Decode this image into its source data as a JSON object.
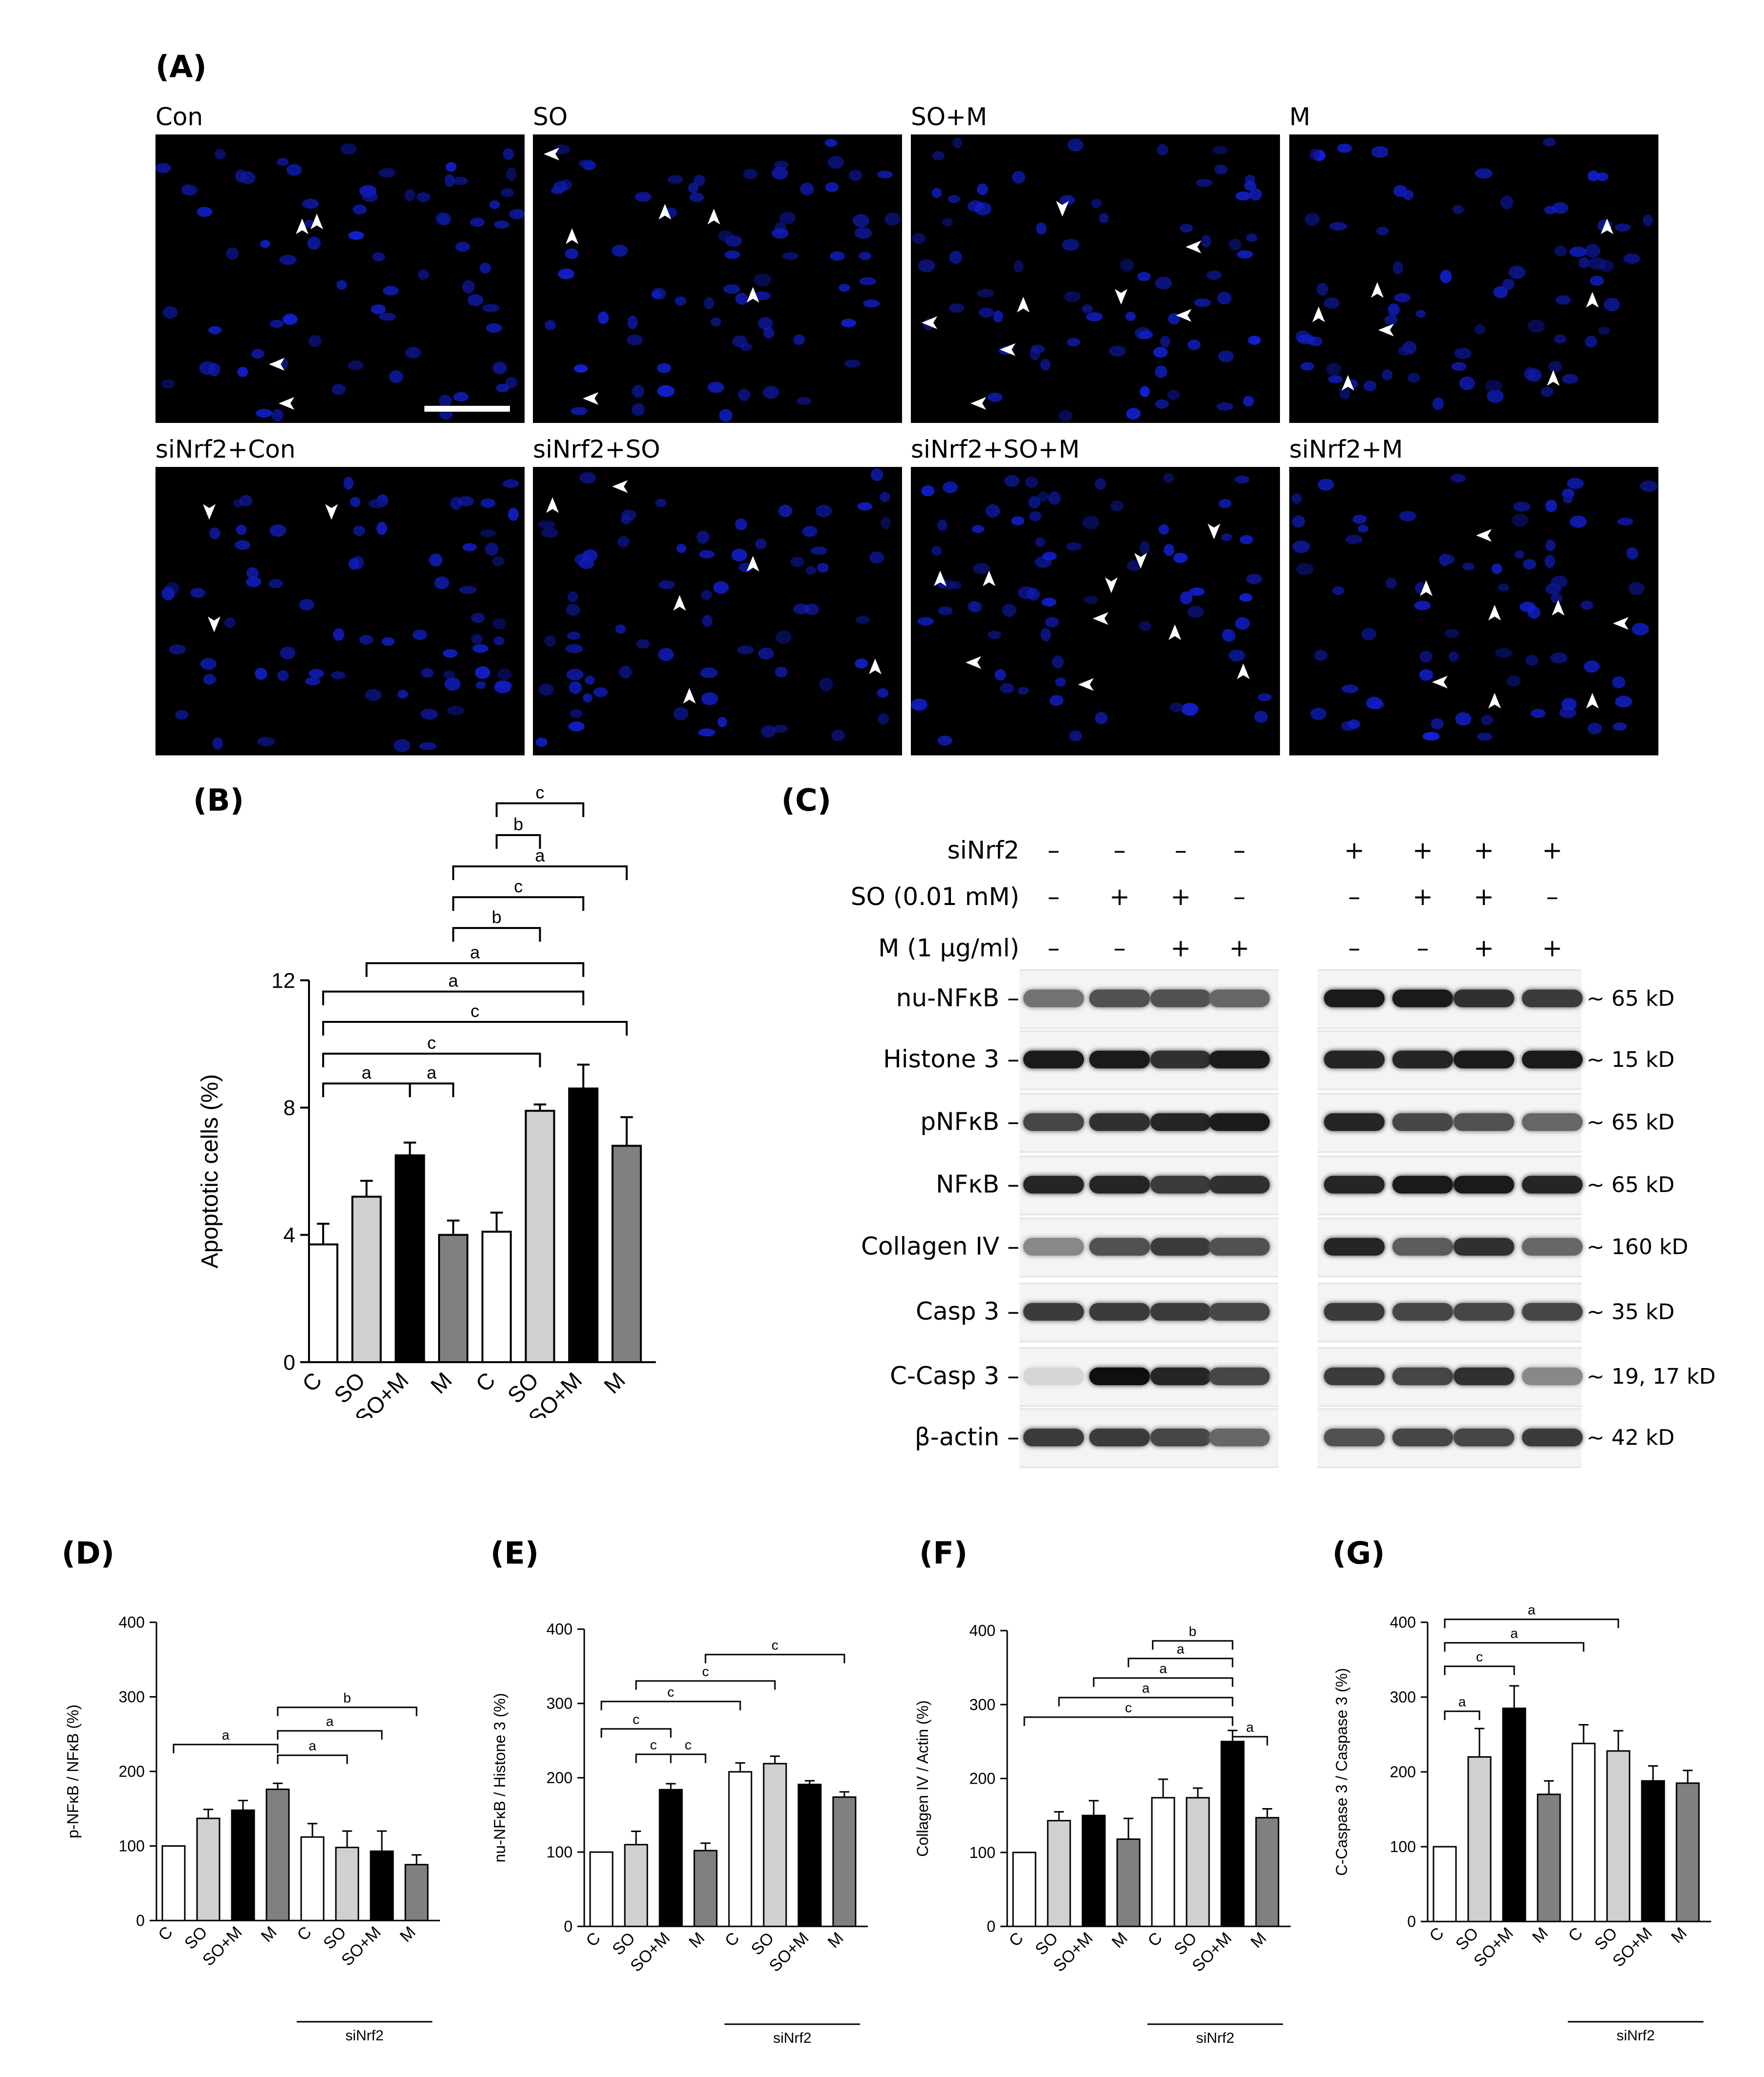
{
  "panelA": {
    "label": "(A)",
    "images": [
      {
        "label": "Con",
        "seed": 1,
        "arrows": [
          [
            300,
            190,
            "up"
          ],
          [
            330,
            180,
            "up"
          ],
          [
            250,
            470,
            "left"
          ],
          [
            270,
            550,
            "left"
          ]
        ]
      },
      {
        "label": "SO",
        "seed": 2,
        "arrows": [
          [
            40,
            40,
            "left"
          ],
          [
            80,
            210,
            "up"
          ],
          [
            270,
            160,
            "up"
          ],
          [
            370,
            170,
            "up"
          ],
          [
            450,
            330,
            "up"
          ],
          [
            120,
            540,
            "left"
          ]
        ]
      },
      {
        "label": "SO+M",
        "seed": 3,
        "arrows": [
          [
            310,
            150,
            "down"
          ],
          [
            580,
            230,
            "left"
          ],
          [
            230,
            350,
            "up"
          ],
          [
            430,
            330,
            "down"
          ],
          [
            560,
            370,
            "left"
          ],
          [
            40,
            385,
            "left"
          ],
          [
            200,
            440,
            "left"
          ],
          [
            140,
            550,
            "left"
          ]
        ]
      },
      {
        "label": "M",
        "seed": 4,
        "arrows": [
          [
            650,
            190,
            "up"
          ],
          [
            60,
            370,
            "up"
          ],
          [
            180,
            320,
            "up"
          ],
          [
            200,
            400,
            "left"
          ],
          [
            620,
            340,
            "up"
          ],
          [
            540,
            500,
            "up"
          ],
          [
            120,
            510,
            "up"
          ]
        ]
      },
      {
        "label": "siNrf2+Con",
        "seed": 5,
        "arrows": [
          [
            110,
            90,
            "down"
          ],
          [
            360,
            90,
            "down"
          ],
          [
            120,
            320,
            "down"
          ]
        ]
      },
      {
        "label": "siNrf2+SO",
        "seed": 6,
        "arrows": [
          [
            40,
            80,
            "up"
          ],
          [
            180,
            40,
            "left"
          ],
          [
            450,
            200,
            "up"
          ],
          [
            300,
            280,
            "up"
          ],
          [
            700,
            410,
            "up"
          ],
          [
            320,
            470,
            "up"
          ]
        ]
      },
      {
        "label": "siNrf2+SO+M",
        "seed": 7,
        "arrows": [
          [
            470,
            190,
            "down"
          ],
          [
            620,
            130,
            "down"
          ],
          [
            410,
            240,
            "down"
          ],
          [
            60,
            230,
            "up"
          ],
          [
            160,
            230,
            "up"
          ],
          [
            390,
            310,
            "left"
          ],
          [
            540,
            340,
            "up"
          ],
          [
            680,
            420,
            "up"
          ],
          [
            130,
            400,
            "left"
          ],
          [
            360,
            445,
            "left"
          ]
        ]
      },
      {
        "label": "siNrf2+M",
        "seed": 8,
        "arrows": [
          [
            400,
            140,
            "left"
          ],
          [
            280,
            250,
            "up"
          ],
          [
            420,
            300,
            "up"
          ],
          [
            550,
            290,
            "up"
          ],
          [
            680,
            320,
            "left"
          ],
          [
            310,
            440,
            "left"
          ],
          [
            420,
            480,
            "up"
          ],
          [
            620,
            480,
            "up"
          ]
        ]
      }
    ]
  },
  "panelB": {
    "label": "(B)",
    "chart_data": {
      "type": "bar",
      "ylabel": "Apoptotic cells (%)",
      "ylim": [
        0,
        12
      ],
      "yticks": [
        "0",
        "4",
        "8",
        "12"
      ],
      "categories": [
        "C",
        "SO",
        "SO+M",
        "M",
        "C",
        "SO",
        "SO+M",
        "M"
      ],
      "values": [
        3.7,
        5.2,
        6.5,
        4.0,
        4.1,
        7.9,
        8.6,
        6.8
      ],
      "errors": [
        0.65,
        0.5,
        0.4,
        0.45,
        0.6,
        0.2,
        0.75,
        0.9
      ],
      "fills": [
        "#ffffff",
        "#d0d0d0",
        "#000000",
        "#808080",
        "#ffffff",
        "#d0d0d0",
        "#000000",
        "#808080"
      ],
      "group_label": "siNrf2",
      "significance": [
        {
          "from": 0,
          "to": 2,
          "label": "a"
        },
        {
          "from": 2,
          "to": 3,
          "label": "a"
        },
        {
          "from": 0,
          "to": 5,
          "label": "c"
        },
        {
          "from": 0,
          "to": 7,
          "label": "c"
        },
        {
          "from": 0,
          "to": 6,
          "label": "a"
        },
        {
          "from": 1,
          "to": 6,
          "label": "a"
        },
        {
          "from": 3,
          "to": 5,
          "label": "b"
        },
        {
          "from": 3,
          "to": 6,
          "label": "c"
        },
        {
          "from": 3,
          "to": 7,
          "label": "a"
        },
        {
          "from": 4,
          "to": 5,
          "label": "b"
        },
        {
          "from": 4,
          "to": 6,
          "label": "c"
        }
      ]
    }
  },
  "panelC": {
    "label": "(C)",
    "rows": [
      {
        "name": "siNrf2",
        "marks": [
          "–",
          "–",
          "–",
          "–",
          "+",
          "+",
          "+",
          "+"
        ]
      },
      {
        "name": "SO (0.01 mM)",
        "marks": [
          "–",
          "+",
          "+",
          "–",
          "–",
          "+",
          "+",
          "–"
        ]
      },
      {
        "name": "M   (1 μg/ml)",
        "marks": [
          "–",
          "–",
          "+",
          "+",
          "–",
          "–",
          "+",
          "+"
        ]
      }
    ],
    "blots": [
      {
        "name": "nu-NFκB –",
        "size": "~ 65 kD",
        "intensity": [
          0.55,
          0.7,
          0.7,
          0.6,
          0.95,
          0.95,
          0.85,
          0.8
        ]
      },
      {
        "name": "Histone 3 –",
        "size": "~ 15 kD",
        "intensity": [
          0.95,
          0.95,
          0.85,
          0.95,
          0.9,
          0.9,
          0.95,
          0.95
        ]
      },
      {
        "name": "pNFκB –",
        "size": "~ 65 kD",
        "intensity": [
          0.75,
          0.85,
          0.9,
          0.95,
          0.9,
          0.75,
          0.7,
          0.6
        ]
      },
      {
        "name": "NFκB –",
        "size": "~ 65 kD",
        "intensity": [
          0.9,
          0.9,
          0.8,
          0.85,
          0.9,
          0.95,
          0.95,
          0.9
        ]
      },
      {
        "name": "Collagen IV –",
        "size": "~ 160 kD",
        "intensity": [
          0.45,
          0.7,
          0.8,
          0.7,
          0.9,
          0.65,
          0.85,
          0.6
        ]
      },
      {
        "name": "Casp 3 –",
        "size": "~ 35 kD",
        "intensity": [
          0.8,
          0.8,
          0.8,
          0.75,
          0.8,
          0.75,
          0.75,
          0.75
        ]
      },
      {
        "name": "C-Casp 3 –",
        "size": "~ 19, 17 kD",
        "intensity": [
          0.1,
          1.0,
          0.9,
          0.75,
          0.8,
          0.75,
          0.85,
          0.45
        ]
      },
      {
        "name": "β-actin –",
        "size": "~ 42 kD",
        "intensity": [
          0.8,
          0.8,
          0.75,
          0.6,
          0.7,
          0.75,
          0.75,
          0.8
        ]
      }
    ]
  },
  "panelD": {
    "label": "(D)",
    "chart_data": {
      "type": "bar",
      "ylabel": "p-NFκB / NFκB (%)",
      "ylim": [
        0,
        400
      ],
      "yticks": [
        "0",
        "100",
        "200",
        "300",
        "400"
      ],
      "categories": [
        "C",
        "SO",
        "SO+M",
        "M",
        "C",
        "SO",
        "SO+M",
        "M"
      ],
      "values": [
        100,
        137,
        148,
        176,
        112,
        98,
        93,
        75
      ],
      "errors": [
        0,
        12,
        13,
        8,
        18,
        22,
        27,
        13
      ],
      "fills": [
        "#ffffff",
        "#d0d0d0",
        "#000000",
        "#808080",
        "#ffffff",
        "#d0d0d0",
        "#000000",
        "#808080"
      ],
      "group_label": "siNrf2",
      "significance": [
        {
          "from": 0,
          "to": 3,
          "label": "a"
        },
        {
          "from": 3,
          "to": 5,
          "label": "a"
        },
        {
          "from": 3,
          "to": 6,
          "label": "a"
        },
        {
          "from": 3,
          "to": 7,
          "label": "b"
        }
      ]
    }
  },
  "panelE": {
    "label": "(E)",
    "chart_data": {
      "type": "bar",
      "ylabel": "nu-NFκB / Histone 3 (%)",
      "ylim": [
        0,
        400
      ],
      "yticks": [
        "0",
        "100",
        "200",
        "300",
        "400"
      ],
      "categories": [
        "C",
        "SO",
        "SO+M",
        "M",
        "C",
        "SO",
        "SO+M",
        "M"
      ],
      "values": [
        100,
        110,
        184,
        102,
        208,
        219,
        191,
        174
      ],
      "errors": [
        0,
        18,
        8,
        10,
        12,
        10,
        5,
        7
      ],
      "fills": [
        "#ffffff",
        "#d0d0d0",
        "#000000",
        "#808080",
        "#ffffff",
        "#d0d0d0",
        "#000000",
        "#808080"
      ],
      "group_label": "siNrf2",
      "significance": [
        {
          "from": 1,
          "to": 2,
          "label": "c"
        },
        {
          "from": 2,
          "to": 3,
          "label": "c"
        },
        {
          "from": 0,
          "to": 2,
          "label": "c"
        },
        {
          "from": 0,
          "to": 4,
          "label": "c"
        },
        {
          "from": 1,
          "to": 5,
          "label": "c"
        },
        {
          "from": 3,
          "to": 7,
          "label": "c"
        }
      ]
    }
  },
  "panelF": {
    "label": "(F)",
    "chart_data": {
      "type": "bar",
      "ylabel": "Collagen IV / Actin (%)",
      "ylim": [
        0,
        400
      ],
      "yticks": [
        "0",
        "100",
        "200",
        "300",
        "400"
      ],
      "categories": [
        "C",
        "SO",
        "SO+M",
        "M",
        "C",
        "SO",
        "SO+M",
        "M"
      ],
      "values": [
        100,
        143,
        150,
        118,
        174,
        174,
        250,
        147
      ],
      "errors": [
        0,
        12,
        20,
        28,
        25,
        13,
        15,
        12
      ],
      "fills": [
        "#ffffff",
        "#d0d0d0",
        "#000000",
        "#808080",
        "#ffffff",
        "#d0d0d0",
        "#000000",
        "#808080"
      ],
      "group_label": "siNrf2",
      "significance": [
        {
          "from": 6,
          "to": 7,
          "label": "a"
        },
        {
          "from": 0,
          "to": 6,
          "label": "c"
        },
        {
          "from": 1,
          "to": 6,
          "label": "a"
        },
        {
          "from": 2,
          "to": 6,
          "label": "a"
        },
        {
          "from": 3,
          "to": 6,
          "label": "a"
        },
        {
          "from": 3.7,
          "to": 6,
          "label": "b"
        }
      ]
    }
  },
  "panelG": {
    "label": "(G)",
    "chart_data": {
      "type": "bar",
      "ylabel": "C-Caspase 3 / Caspase 3 (%)",
      "ylim": [
        0,
        400
      ],
      "yticks": [
        "0",
        "100",
        "200",
        "300",
        "400"
      ],
      "categories": [
        "C",
        "SO",
        "SO+M",
        "M",
        "C",
        "SO",
        "SO+M",
        "M"
      ],
      "values": [
        100,
        220,
        285,
        170,
        238,
        228,
        188,
        185
      ],
      "errors": [
        0,
        38,
        30,
        18,
        25,
        27,
        20,
        17
      ],
      "fills": [
        "#ffffff",
        "#d0d0d0",
        "#000000",
        "#808080",
        "#ffffff",
        "#d0d0d0",
        "#000000",
        "#808080"
      ],
      "group_label": "siNrf2",
      "significance": [
        {
          "from": 0,
          "to": 1,
          "label": "a"
        },
        {
          "from": 0,
          "to": 2,
          "label": "c"
        },
        {
          "from": 0,
          "to": 4,
          "label": "a"
        },
        {
          "from": 0,
          "to": 5,
          "label": "a"
        }
      ]
    }
  }
}
